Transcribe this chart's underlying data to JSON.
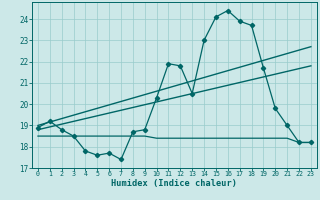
{
  "xlabel": "Humidex (Indice chaleur)",
  "xlim": [
    -0.5,
    23.5
  ],
  "ylim": [
    17,
    24.8
  ],
  "yticks": [
    17,
    18,
    19,
    20,
    21,
    22,
    23,
    24
  ],
  "xticks": [
    0,
    1,
    2,
    3,
    4,
    5,
    6,
    7,
    8,
    9,
    10,
    11,
    12,
    13,
    14,
    15,
    16,
    17,
    18,
    19,
    20,
    21,
    22,
    23
  ],
  "bg_color": "#cce8e8",
  "line_color": "#006666",
  "grid_color": "#99cccc",
  "series1_x": [
    0,
    1,
    2,
    3,
    4,
    5,
    6,
    7,
    8,
    9,
    10,
    11,
    12,
    13,
    14,
    15,
    16,
    17,
    18,
    19,
    20,
    21,
    22,
    23
  ],
  "series1_y": [
    18.9,
    19.2,
    18.8,
    18.5,
    17.8,
    17.6,
    17.7,
    17.4,
    18.7,
    18.8,
    20.3,
    21.9,
    21.8,
    20.5,
    23.0,
    24.1,
    24.4,
    23.9,
    23.7,
    21.7,
    19.8,
    19.0,
    18.2,
    18.2
  ],
  "series2_x": [
    0,
    23
  ],
  "series2_y": [
    19.0,
    22.7
  ],
  "series3_x": [
    0,
    23
  ],
  "series3_y": [
    18.8,
    21.8
  ],
  "series4_x": [
    0,
    1,
    2,
    3,
    4,
    5,
    6,
    7,
    8,
    9,
    10,
    11,
    12,
    13,
    14,
    15,
    16,
    17,
    18,
    19,
    20,
    21,
    22,
    23
  ],
  "series4_y": [
    18.5,
    18.5,
    18.5,
    18.5,
    18.5,
    18.5,
    18.5,
    18.5,
    18.5,
    18.5,
    18.4,
    18.4,
    18.4,
    18.4,
    18.4,
    18.4,
    18.4,
    18.4,
    18.4,
    18.4,
    18.4,
    18.4,
    18.2,
    18.2
  ]
}
